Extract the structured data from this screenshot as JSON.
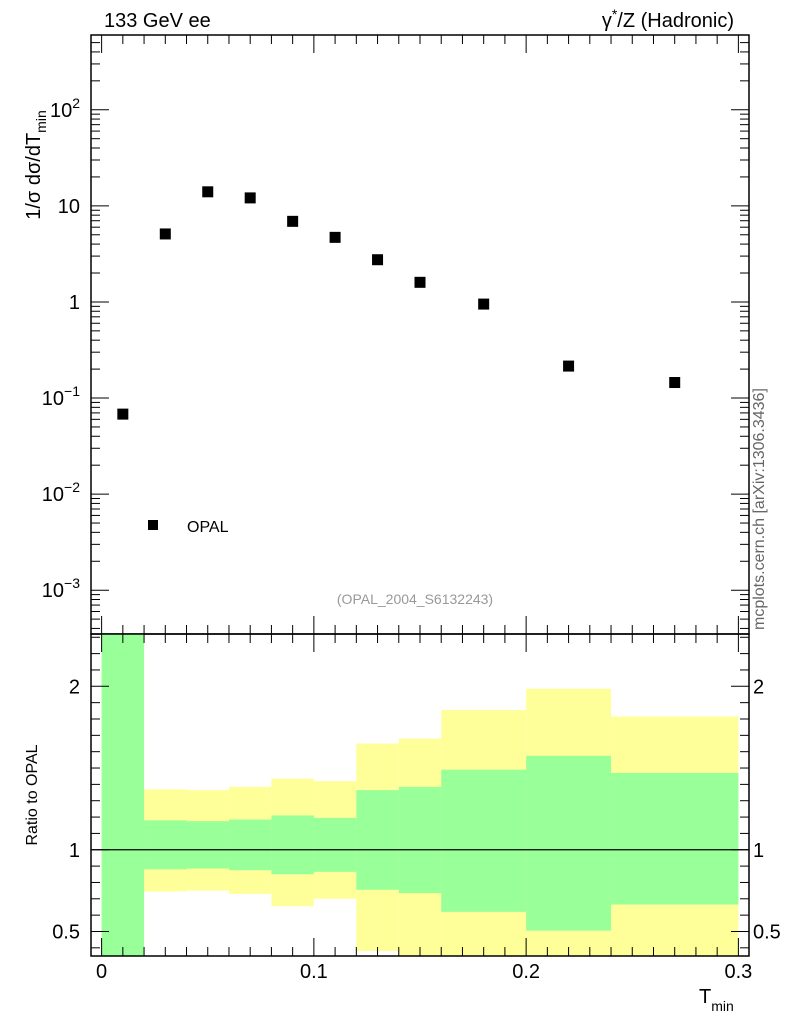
{
  "header": {
    "left": "133 GeV ee",
    "right_pre": "γ",
    "right_sup": "*",
    "right_post": "/Z (Hadronic)"
  },
  "side_note": "mcplots.cern.ch [arXiv:1306.3436]",
  "analysis_id": "(OPAL_2004_S6132243)",
  "chart_data": [
    {
      "type": "scatter",
      "yscale": "log",
      "ylabel": {
        "main": "1/σ dσ/dT",
        "sub": "min"
      },
      "xlim": [
        -0.005,
        0.305
      ],
      "ylim": [
        0.00035,
        600
      ],
      "y_ticks": [
        {
          "value": 0.001,
          "base": "10",
          "exp": "−3"
        },
        {
          "value": 0.01,
          "base": "10",
          "exp": "−2"
        },
        {
          "value": 0.1,
          "base": "10",
          "exp": "−1"
        },
        {
          "value": 1,
          "base": "1",
          "exp": ""
        },
        {
          "value": 10,
          "base": "10",
          "exp": ""
        },
        {
          "value": 100,
          "base": "10",
          "exp": "2"
        }
      ],
      "legend": {
        "position": "bottom-left",
        "label": "OPAL"
      },
      "series": [
        {
          "name": "OPAL",
          "x": [
            0.01,
            0.03,
            0.05,
            0.07,
            0.09,
            0.11,
            0.13,
            0.15,
            0.18,
            0.22,
            0.27
          ],
          "y": [
            0.068,
            5.1,
            14.0,
            12.1,
            6.9,
            4.7,
            2.75,
            1.6,
            0.95,
            0.215,
            0.145
          ]
        }
      ]
    },
    {
      "type": "area",
      "ylabel": "Ratio to OPAL",
      "xlabel": {
        "main": "T",
        "sub": "min"
      },
      "xlim": [
        -0.005,
        0.305
      ],
      "ylim": [
        0.35,
        2.32
      ],
      "x_ticks": [
        {
          "value": 0,
          "label": "0"
        },
        {
          "value": 0.1,
          "label": "0.1"
        },
        {
          "value": 0.2,
          "label": "0.2"
        },
        {
          "value": 0.3,
          "label": "0.3"
        }
      ],
      "y_ticks": [
        {
          "value": 0.5,
          "label": "0.5"
        },
        {
          "value": 1,
          "label": "1"
        },
        {
          "value": 2,
          "label": "2"
        }
      ],
      "reference_line": 1,
      "bins": [
        0,
        0.02,
        0.04,
        0.06,
        0.08,
        0.1,
        0.12,
        0.14,
        0.16,
        0.2,
        0.24,
        0.3
      ],
      "stat_band": {
        "color": "#99ff99",
        "lo": [
          0.35,
          0.88,
          0.885,
          0.875,
          0.85,
          0.865,
          0.755,
          0.735,
          0.62,
          0.505,
          0.665
        ],
        "hi": [
          2.32,
          1.18,
          1.175,
          1.185,
          1.21,
          1.195,
          1.365,
          1.385,
          1.49,
          1.575,
          1.47
        ]
      },
      "total_band": {
        "color": "#ffff99",
        "lo": [
          0.35,
          0.745,
          0.75,
          0.73,
          0.655,
          0.7,
          0.38,
          0.35,
          0.35,
          0.35,
          0.35
        ],
        "hi": [
          2.32,
          1.37,
          1.365,
          1.385,
          1.435,
          1.42,
          1.65,
          1.68,
          1.855,
          1.985,
          1.815
        ]
      }
    }
  ]
}
